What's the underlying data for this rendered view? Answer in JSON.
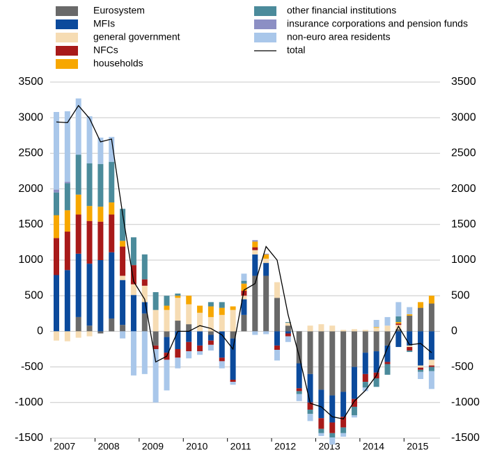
{
  "chart_data": {
    "type": "stacked_bar_line",
    "categories": [
      "2007",
      null,
      null,
      null,
      "2008",
      null,
      null,
      null,
      "2009",
      null,
      null,
      null,
      "2010",
      null,
      null,
      null,
      "2011",
      null,
      null,
      null,
      "2012",
      null,
      null,
      null,
      "2013",
      null,
      null,
      null,
      "2014",
      null,
      null,
      null,
      "2015",
      null,
      null
    ],
    "series": [
      {
        "name": "Eurosystem",
        "color": "#696969",
        "values": [
          0,
          0,
          200,
          80,
          -30,
          180,
          90,
          0,
          250,
          -200,
          -80,
          150,
          100,
          0,
          -50,
          0,
          -100,
          230,
          780,
          780,
          470,
          80,
          -450,
          -600,
          -820,
          -900,
          -850,
          -500,
          -300,
          -280,
          -200,
          30,
          220,
          330,
          390
        ]
      },
      {
        "name": "MFIs",
        "color": "#0b4a9c",
        "values": [
          790,
          860,
          890,
          870,
          1000,
          930,
          630,
          510,
          160,
          0,
          -220,
          -250,
          -150,
          -200,
          -80,
          -370,
          -580,
          220,
          300,
          180,
          -200,
          -30,
          -350,
          -400,
          -400,
          -380,
          -350,
          -450,
          -300,
          -300,
          -230,
          -220,
          -200,
          -480,
          -400
        ]
      },
      {
        "name": "general government",
        "color": "#f6dcb3",
        "values": [
          -130,
          -140,
          -90,
          -70,
          0,
          0,
          60,
          150,
          230,
          300,
          300,
          320,
          280,
          260,
          200,
          230,
          300,
          50,
          60,
          60,
          220,
          40,
          0,
          80,
          100,
          80,
          20,
          30,
          20,
          50,
          80,
          60,
          -20,
          -30,
          -80
        ]
      },
      {
        "name": "NFCs",
        "color": "#a81a1a",
        "values": [
          520,
          540,
          550,
          600,
          540,
          530,
          410,
          270,
          90,
          -50,
          -100,
          -120,
          -130,
          -80,
          -60,
          -50,
          -30,
          70,
          40,
          0,
          -60,
          -40,
          -40,
          -100,
          -150,
          -150,
          -150,
          -110,
          -110,
          -80,
          -30,
          20,
          -50,
          -30,
          -20
        ]
      },
      {
        "name": "households",
        "color": "#f7a700",
        "values": [
          320,
          300,
          280,
          210,
          210,
          170,
          80,
          0,
          0,
          0,
          60,
          30,
          120,
          100,
          150,
          100,
          50,
          100,
          80,
          60,
          0,
          0,
          0,
          0,
          0,
          0,
          0,
          0,
          0,
          10,
          0,
          20,
          20,
          80,
          110
        ]
      },
      {
        "name": "other financial institutions",
        "color": "#4b8b9b",
        "values": [
          320,
          380,
          560,
          600,
          600,
          570,
          450,
          390,
          350,
          250,
          140,
          30,
          0,
          0,
          60,
          80,
          0,
          40,
          0,
          0,
          0,
          10,
          -40,
          -60,
          -60,
          -60,
          -80,
          -120,
          -80,
          -120,
          -150,
          80,
          -20,
          -30,
          -60
        ]
      },
      {
        "name": "insurance corporations and pension funds",
        "color": "#8c8fc4",
        "values": [
          40,
          20,
          0,
          0,
          0,
          0,
          0,
          0,
          0,
          0,
          0,
          0,
          0,
          0,
          0,
          0,
          0,
          0,
          20,
          10,
          0,
          0,
          0,
          0,
          0,
          0,
          0,
          0,
          0,
          0,
          0,
          0,
          0,
          0,
          0
        ]
      },
      {
        "name": "non-euro area residents",
        "color": "#a9c7ea",
        "values": [
          1090,
          990,
          790,
          660,
          370,
          350,
          -100,
          -620,
          -600,
          -750,
          -430,
          -150,
          -100,
          -50,
          -80,
          -100,
          -40,
          100,
          -50,
          -40,
          -150,
          -80,
          -100,
          -100,
          -40,
          -100,
          -50,
          -30,
          -50,
          100,
          120,
          200,
          100,
          -100,
          -250
        ]
      },
      {
        "name": "total",
        "color": "#000000",
        "line": true,
        "values": [
          2940,
          2930,
          3170,
          2990,
          2660,
          2700,
          1650,
          700,
          450,
          -430,
          -350,
          0,
          0,
          80,
          40,
          -50,
          -250,
          580,
          670,
          1190,
          1000,
          230,
          -350,
          -1010,
          -1060,
          -1200,
          -1230,
          -980,
          -830,
          -620,
          -230,
          70,
          -190,
          -170,
          -300
        ]
      }
    ],
    "ylim": [
      -1500,
      3500
    ],
    "yticks": [
      -1500,
      -1000,
      -500,
      0,
      500,
      1000,
      1500,
      2000,
      2500,
      3000,
      3500
    ],
    "y2lim": [
      -1500,
      3500
    ],
    "y2ticks": [
      -1500,
      -1000,
      -500,
      0,
      500,
      1000,
      1500,
      2000,
      2500,
      3000,
      3500
    ],
    "grid": true
  }
}
